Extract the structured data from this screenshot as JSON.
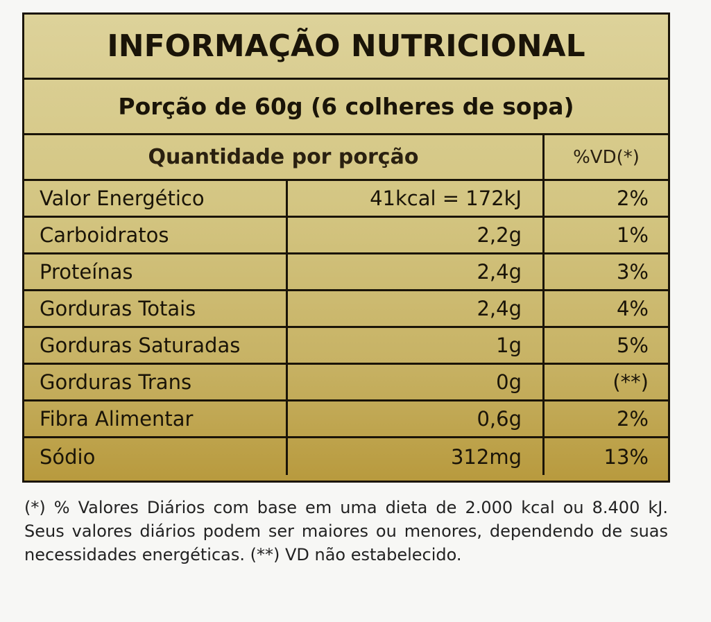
{
  "title": "INFORMAÇÃO NUTRICIONAL",
  "portion": "Porção de 60g (6 colheres de sopa)",
  "header": {
    "quantity": "Quantidade por porção",
    "dv": "%VD(*)"
  },
  "rows": [
    {
      "name": "Valor Energético",
      "amount": "41kcal = 172kJ",
      "dv": "2%"
    },
    {
      "name": "Carboidratos",
      "amount": "2,2g",
      "dv": "1%"
    },
    {
      "name": "Proteínas",
      "amount": "2,4g",
      "dv": "3%"
    },
    {
      "name": "Gorduras Totais",
      "amount": "2,4g",
      "dv": "4%"
    },
    {
      "name": "Gorduras Saturadas",
      "amount": "1g",
      "dv": "5%"
    },
    {
      "name": "Gorduras Trans",
      "amount": "0g",
      "dv": "(**)"
    },
    {
      "name": "Fibra Alimentar",
      "amount": "0,6g",
      "dv": "2%"
    },
    {
      "name": "Sódio",
      "amount": "312mg",
      "dv": "13%"
    }
  ],
  "footnote": "(*) % Valores Diários com base em uma dieta de 2.000 kcal ou 8.400 kJ. Seus valores diários podem ser maiores ou menores, dependendo de suas necessidades energéticas. (**) VD não estabelecido.",
  "colors": {
    "label_light": "#ddd29a",
    "label_dark": "#b89a3e",
    "border": "#1a1408"
  }
}
